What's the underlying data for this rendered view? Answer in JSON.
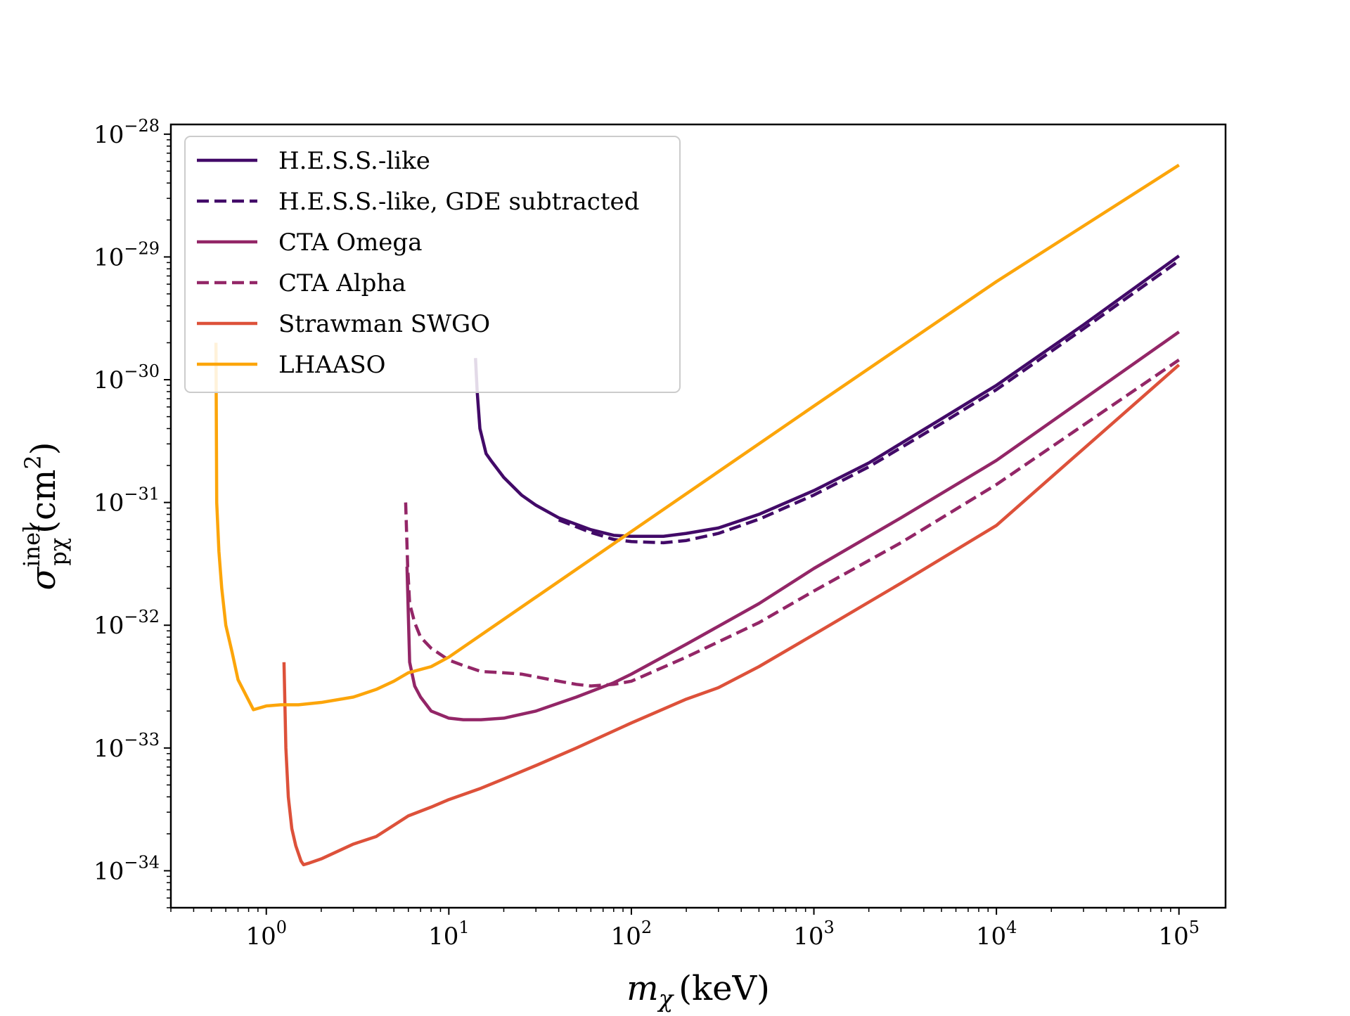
{
  "chart_data": {
    "type": "line",
    "title": "",
    "xlabel": {
      "base": "m",
      "sub": "χ",
      "unit": "(keV)"
    },
    "ylabel": {
      "base": "σ",
      "sup": "inel",
      "sub": "pχ",
      "unit": "(cm",
      "unit_sup": "2",
      "unit_close": ")"
    },
    "xscale": "log",
    "yscale": "log",
    "xlim": [
      0.3,
      180000
    ],
    "ylim": [
      5e-35,
      1.2e-28
    ],
    "x_ticks": [
      {
        "value": 1,
        "base": "10",
        "exp": "0"
      },
      {
        "value": 10,
        "base": "10",
        "exp": "1"
      },
      {
        "value": 100,
        "base": "10",
        "exp": "2"
      },
      {
        "value": 1000,
        "base": "10",
        "exp": "3"
      },
      {
        "value": 10000,
        "base": "10",
        "exp": "4"
      },
      {
        "value": 100000,
        "base": "10",
        "exp": "5"
      }
    ],
    "y_ticks": [
      {
        "value": 1e-34,
        "base": "10",
        "exp": "−34"
      },
      {
        "value": 1e-33,
        "base": "10",
        "exp": "−33"
      },
      {
        "value": 1e-32,
        "base": "10",
        "exp": "−32"
      },
      {
        "value": 1e-31,
        "base": "10",
        "exp": "−31"
      },
      {
        "value": 1e-30,
        "base": "10",
        "exp": "−30"
      },
      {
        "value": 1e-29,
        "base": "10",
        "exp": "−29"
      },
      {
        "value": 1e-28,
        "base": "10",
        "exp": "−28"
      }
    ],
    "grid": false,
    "legend_position": "top-left",
    "series": [
      {
        "name": "H.E.S.S.-like",
        "color": "#420a68",
        "dash": "solid",
        "x": [
          14,
          14.3,
          14.8,
          16,
          17,
          20,
          25,
          30,
          40,
          60,
          80,
          100,
          150,
          200,
          300,
          500,
          1000,
          2000,
          5000,
          10000,
          30000,
          100000
        ],
        "y": [
          1.5e-30,
          8e-31,
          4e-31,
          2.5e-31,
          2.2e-31,
          1.6e-31,
          1.15e-31,
          9.5e-32,
          7.5e-32,
          6e-32,
          5.4e-32,
          5.3e-32,
          5.3e-32,
          5.6e-32,
          6.2e-32,
          8e-32,
          1.25e-31,
          2.1e-31,
          4.8e-31,
          9e-31,
          2.8e-30,
          1.02e-29
        ]
      },
      {
        "name": "H.E.S.S.-like, GDE subtracted",
        "color": "#420a68",
        "dash": "dashed",
        "x": [
          40,
          60,
          80,
          100,
          150,
          200,
          300,
          500,
          1000,
          2000,
          5000,
          10000,
          30000,
          100000
        ],
        "y": [
          7.2e-32,
          5.7e-32,
          5e-32,
          4.8e-32,
          4.7e-32,
          4.9e-32,
          5.6e-32,
          7.3e-32,
          1.15e-31,
          1.95e-31,
          4.4e-31,
          8.3e-31,
          2.6e-30,
          9.3e-30
        ]
      },
      {
        "name": "CTA Omega",
        "color": "#932667",
        "dash": "solid",
        "x": [
          5.9,
          6.1,
          6.5,
          7,
          8,
          10,
          12,
          15,
          20,
          30,
          50,
          80,
          100,
          200,
          500,
          1000,
          3000,
          10000,
          100000
        ],
        "y": [
          3e-32,
          5e-33,
          3.2e-33,
          2.6e-33,
          2e-33,
          1.75e-33,
          1.7e-33,
          1.7e-33,
          1.75e-33,
          2e-33,
          2.6e-33,
          3.4e-33,
          4e-33,
          7e-33,
          1.5e-32,
          2.9e-32,
          7.5e-32,
          2.2e-31,
          2.45e-30
        ]
      },
      {
        "name": "CTA Alpha",
        "color": "#932667",
        "dash": "dashed",
        "x": [
          5.8,
          5.95,
          6.1,
          6.5,
          7,
          8,
          10,
          12,
          15,
          20,
          25,
          30,
          40,
          50,
          60,
          80,
          100,
          200,
          500,
          1000,
          3000,
          10000,
          100000
        ],
        "y": [
          1e-31,
          3e-32,
          1.5e-32,
          1.05e-32,
          8e-33,
          6.5e-33,
          5.2e-33,
          4.7e-33,
          4.2e-33,
          4.1e-33,
          4e-33,
          3.8e-33,
          3.5e-33,
          3.3e-33,
          3.2e-33,
          3.3e-33,
          3.5e-33,
          5.5e-33,
          1.05e-32,
          1.9e-32,
          4.7e-32,
          1.4e-31,
          1.45e-30
        ]
      },
      {
        "name": "Strawman SWGO",
        "color": "#dd513a",
        "dash": "solid",
        "x": [
          1.25,
          1.28,
          1.32,
          1.38,
          1.45,
          1.55,
          1.6,
          1.7,
          2,
          3,
          4,
          5,
          6,
          8,
          10,
          15,
          20,
          30,
          50,
          100,
          200,
          300,
          500,
          1000,
          3000,
          10000,
          100000
        ],
        "y": [
          5e-33,
          1e-33,
          4e-34,
          2.2e-34,
          1.6e-34,
          1.2e-34,
          1.12e-34,
          1.15e-34,
          1.25e-34,
          1.65e-34,
          1.9e-34,
          2.35e-34,
          2.8e-34,
          3.3e-34,
          3.8e-34,
          4.7e-34,
          5.6e-34,
          7.2e-34,
          1e-33,
          1.6e-33,
          2.5e-33,
          3.1e-33,
          4.6e-33,
          8.4e-33,
          2.2e-32,
          6.5e-32,
          1.32e-30
        ]
      },
      {
        "name": "LHAASO",
        "color": "#fca50a",
        "dash": "solid",
        "x": [
          0.53,
          0.535,
          0.55,
          0.57,
          0.6,
          0.65,
          0.7,
          0.85,
          1,
          1.2,
          1.5,
          2,
          3,
          4,
          5,
          6,
          8,
          10,
          100,
          1000,
          10000,
          100000
        ],
        "y": [
          2e-30,
          1e-31,
          4e-32,
          2e-32,
          1e-32,
          6e-33,
          3.6e-33,
          2.05e-33,
          2.2e-33,
          2.25e-33,
          2.25e-33,
          2.35e-33,
          2.6e-33,
          3e-33,
          3.5e-33,
          4.1e-33,
          4.6e-33,
          5.5e-33,
          5.8e-32,
          6.1e-31,
          6.3e-30,
          5.6e-29
        ]
      }
    ]
  }
}
